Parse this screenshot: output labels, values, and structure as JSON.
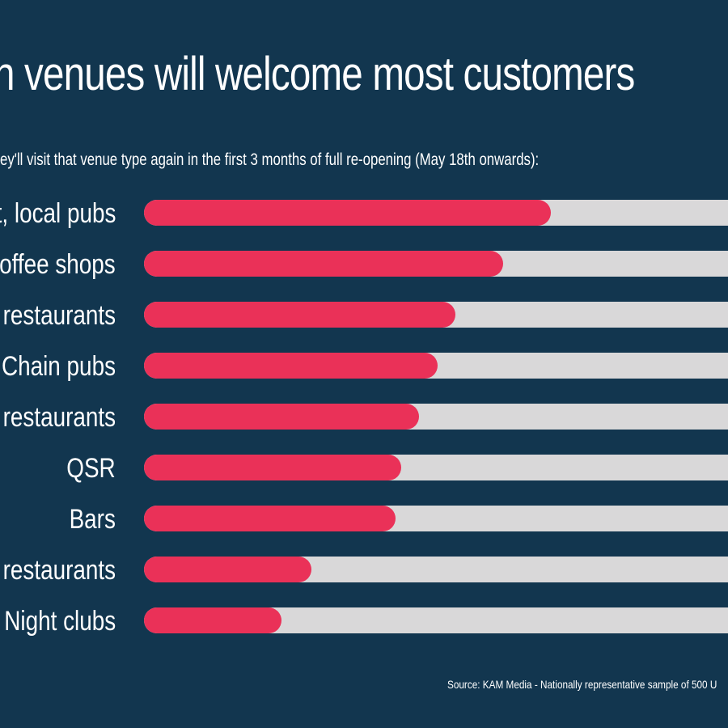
{
  "chart_data": {
    "type": "bar",
    "orientation": "horizontal",
    "title": "h venues will welcome most customers",
    "subtitle": "ey'll visit that venue type again in the first 3 months of full re-opening (May 18th onwards):",
    "categories": [
      "t, local pubs",
      "Coffee shops",
      "restaurants",
      "Chain pubs",
      "restaurants",
      "QSR",
      "Bars",
      "restaurants",
      "Night clubs"
    ],
    "values": [
      68,
      60,
      52,
      49,
      46,
      43,
      42,
      28,
      23
    ],
    "xlim": [
      0,
      100
    ],
    "source": "Source: KAM Media - Nationally representative sample of 500 U",
    "colors": {
      "background": "#12364f",
      "bar": "#ea3158",
      "track": "#d9d8d9",
      "text": "#ffffff"
    }
  }
}
